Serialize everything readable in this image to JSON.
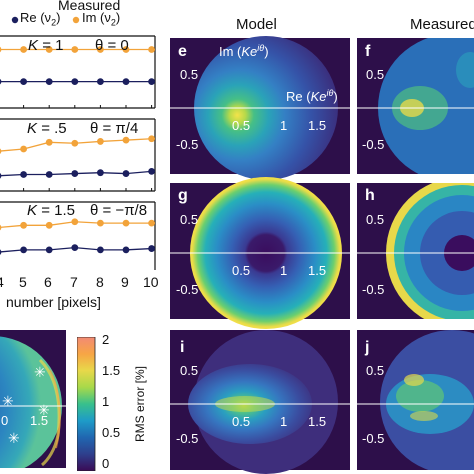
{
  "legend": {
    "title": "Measured",
    "re_label": "Re (ν",
    "im_label": "Im (ν",
    "sub": "2",
    "close": ")",
    "re_color": "#1b1f5e",
    "im_color": "#f2a33a"
  },
  "line_panels": [
    {
      "k_label": "K",
      "k_value": "= 1",
      "theta_label": "θ = 0"
    },
    {
      "k_label": "K",
      "k_value": "= .5",
      "theta_label": "θ = π/4"
    },
    {
      "k_label": "K",
      "k_value": "= 1.5",
      "theta_label": "θ = −π/8"
    }
  ],
  "x_ticks": [
    "4",
    "5",
    "6",
    "7",
    "8",
    "9",
    "10"
  ],
  "x_axis_label": "number [pixels]",
  "colorbar": {
    "label": "RMS error [%]",
    "ticks": [
      "2",
      "1.5",
      "1",
      "0.5",
      "0"
    ],
    "colors": [
      "#3a0a55",
      "#2e3f8c",
      "#2066b0",
      "#1e9bc8",
      "#38c08c",
      "#a8d94a",
      "#e8d84a",
      "#f7a545",
      "#f28a75"
    ]
  },
  "error_map": {
    "ticks": [
      "0",
      "1.5"
    ]
  },
  "column_titles": {
    "model": "Model",
    "measured": "Measured"
  },
  "panel_letters": {
    "e": "e",
    "f": "f",
    "g": "g",
    "h": "h",
    "i": "i",
    "j": "j"
  },
  "axis_ticks": {
    "y_pos": "0.5",
    "y_neg": "-0.5",
    "x": [
      "0.5",
      "1",
      "1.5"
    ]
  },
  "axis_labels": {
    "im_prefix": "Im (",
    "im_k": "Ke",
    "im_exp": "iθ",
    "im_close": ")",
    "re_prefix": "Re (",
    "re_k": "Ke",
    "re_exp": "iθ",
    "re_close": ")"
  },
  "chart_data": [
    {
      "type": "line",
      "series": [
        {
          "name": "Im (ν2)",
          "x": [
            4,
            5,
            6,
            7,
            8,
            9,
            10
          ],
          "values": [
            0.72,
            0.72,
            0.72,
            0.72,
            0.72,
            0.72,
            0.72
          ]
        },
        {
          "name": "Re (ν2)",
          "x": [
            4,
            5,
            6,
            7,
            8,
            9,
            10
          ],
          "values": [
            0.0,
            0.0,
            0.0,
            0.0,
            0.0,
            0.0,
            0.0
          ]
        }
      ]
    },
    {
      "type": "line",
      "series": [
        {
          "name": "Im (ν2)",
          "x": [
            4,
            5,
            6,
            7,
            8,
            9,
            10
          ],
          "values": [
            0.3,
            0.35,
            0.5,
            0.48,
            0.52,
            0.55,
            0.58
          ]
        },
        {
          "name": "Re (ν2)",
          "x": [
            4,
            5,
            6,
            7,
            8,
            9,
            10
          ],
          "values": [
            -0.25,
            -0.22,
            -0.22,
            -0.2,
            -0.18,
            -0.2,
            -0.15
          ]
        }
      ]
    },
    {
      "type": "line",
      "series": [
        {
          "name": "Im (ν2)",
          "x": [
            4,
            5,
            6,
            7,
            8,
            9,
            10
          ],
          "values": [
            0.45,
            0.5,
            0.5,
            0.58,
            0.55,
            0.55,
            0.55
          ]
        },
        {
          "name": "Re (ν2)",
          "x": [
            4,
            5,
            6,
            7,
            8,
            9,
            10
          ],
          "values": [
            -0.1,
            -0.05,
            -0.05,
            0.0,
            -0.05,
            -0.05,
            -0.02
          ]
        }
      ]
    }
  ]
}
